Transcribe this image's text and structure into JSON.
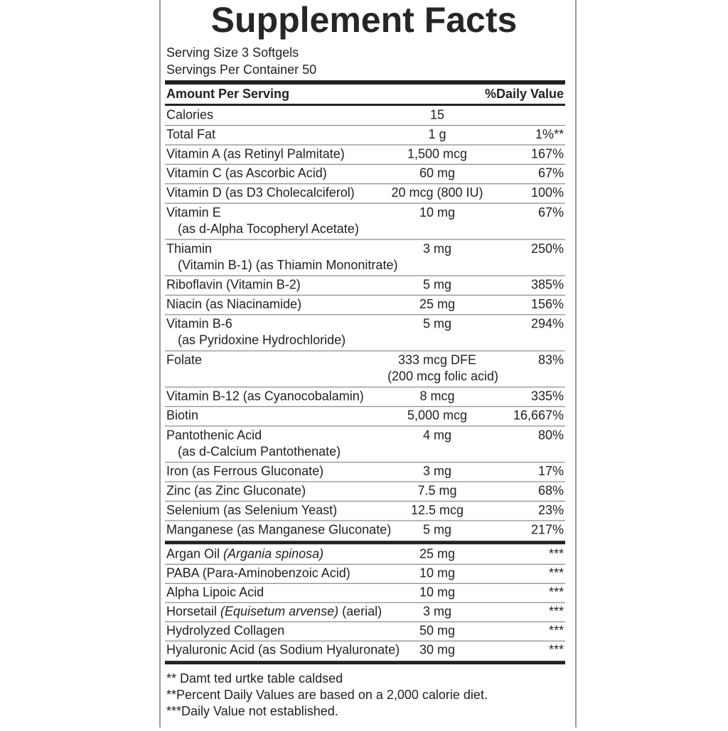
{
  "label": {
    "title": "Supplement Facts",
    "serving_size": "Serving Size 3 Softgels",
    "servings_per_container": "Servings Per Container 50",
    "header": {
      "amount": "Amount Per Serving",
      "dv": "%Daily Value"
    },
    "rows": [
      {
        "name": "Calories",
        "amount": "15"
      },
      {
        "name": "Total Fat",
        "amount": "1 g",
        "dv": "1%**"
      },
      {
        "name": "Vitamin A (as Retinyl Palmitate)",
        "amount": "1,500 mcg",
        "dv": "167%"
      },
      {
        "name": "Vitamin C (as Ascorbic Acid)",
        "amount": "60 mg",
        "dv": "67%"
      },
      {
        "name": "Vitamin D (as D3 Cholecalciferol)",
        "amount": "20 mcg (800 IU)",
        "dv": "100%"
      },
      {
        "name": "Vitamin E",
        "name2": "(as d-Alpha Tocopheryl Acetate)",
        "amount": "10 mg",
        "dv": "67%"
      },
      {
        "name": "Thiamin",
        "name2": "(Vitamin B-1) (as Thiamin Mononitrate)",
        "amount": "3 mg",
        "dv": "250%"
      },
      {
        "name": "Riboflavin (Vitamin B-2)",
        "amount": "5 mg",
        "dv": "385%"
      },
      {
        "name": "Niacin (as Niacinamide)",
        "amount": "25 mg",
        "dv": "156%"
      },
      {
        "name": "Vitamin B-6",
        "name2": "(as Pyridoxine Hydrochloride)",
        "amount": "5 mg",
        "dv": "294%"
      },
      {
        "name": "Folate",
        "amount": "333 mcg DFE",
        "amount2": "(200 mcg folic acid)",
        "dv": "83%"
      },
      {
        "name": "Vitamin B-12 (as Cyanocobalamin)",
        "amount": "8 mcg",
        "dv": "335%"
      },
      {
        "name": "Biotin",
        "amount": "5,000 mcg",
        "dv": "16,667%"
      },
      {
        "name": "Pantothenic Acid",
        "name2": "(as d-Calcium Pantothenate)",
        "amount": "4 mg",
        "dv": "80%"
      },
      {
        "name": "Iron (as Ferrous Gluconate)",
        "amount": "3 mg",
        "dv": "17%"
      },
      {
        "name": "Zinc (as Zinc Gluconate)",
        "amount": "7.5 mg",
        "dv": "68%"
      },
      {
        "name": "Selenium (as Selenium Yeast)",
        "amount": "12.5 mcg",
        "dv": "23%"
      },
      {
        "name": "Manganese (as Manganese Gluconate)",
        "amount": "5 mg",
        "dv": "217%"
      }
    ],
    "other_rows": [
      {
        "name": "Argan Oil ",
        "latin": "(Argania spinosa)",
        "amount": "25 mg",
        "dv": "***"
      },
      {
        "name": "PABA (Para-Aminobenzoic Acid)",
        "amount": "10 mg",
        "dv": "***"
      },
      {
        "name": "Alpha Lipoic Acid",
        "amount": "10 mg",
        "dv": "***"
      },
      {
        "name": "Horsetail ",
        "latin": "(Equisetum arvense)",
        "suffix": " (aerial)",
        "amount": "3 mg",
        "dv": "***"
      },
      {
        "name": "Hydrolyzed Collagen",
        "amount": "50 mg",
        "dv": "***"
      },
      {
        "name": "Hyaluronic Acid (as Sodium Hyaluronate)",
        "amount": "30 mg",
        "dv": "***"
      }
    ],
    "footnotes": [
      "** Damt ted urtke table caldsed",
      "**Percent Daily Values are based on a 2,000 calorie diet.",
      "***Daily Value not established."
    ]
  }
}
